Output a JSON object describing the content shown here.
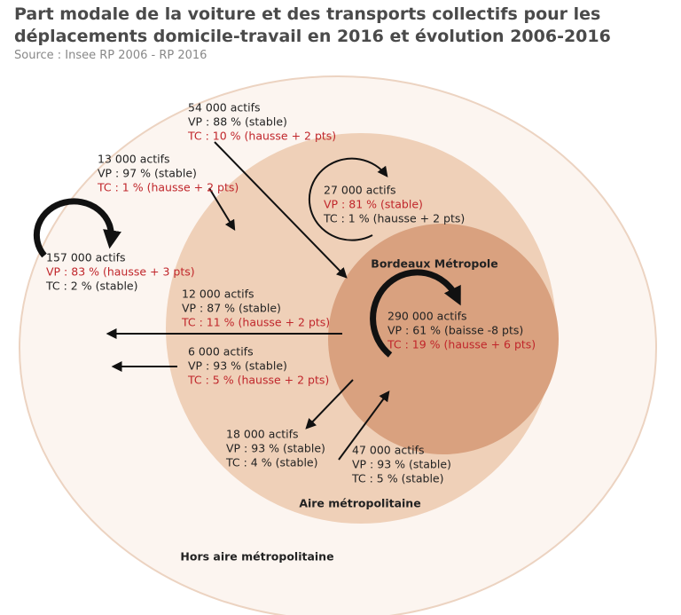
{
  "title": "Part modale de la voiture et des transports collectifs pour les déplacements domicile-travail en 2016 et évolution 2006-2016",
  "source": "Source : Insee RP 2006 - RP 2016",
  "zones": {
    "inner": "Bordeaux Métropole",
    "middle": "Aire métropolitaine",
    "outer": "Hors aire métropolitaine"
  },
  "flows": [
    {
      "count": "54 000 actifs",
      "vp": "VP : 88 % (stable)",
      "tc": "TC : 10 % (hausse + 2 pts)"
    },
    {
      "count": "13 000 actifs",
      "vp": "VP : 97 % (stable)",
      "tc": "TC : 1 % (hausse + 2 pts)"
    },
    {
      "count": "27 000 actifs",
      "vp": "VP : 81 % (stable)",
      "tc": "TC : 1 % (hausse + 2 pts)"
    },
    {
      "count": "157 000 actifs",
      "vp": "VP : 83 % (hausse + 3 pts)",
      "tc": "TC : 2 % (stable)"
    },
    {
      "count": "12 000 actifs",
      "vp": "VP : 87 % (stable)",
      "tc": "TC : 11 % (hausse + 2 pts)"
    },
    {
      "count": "290 000 actifs",
      "vp": "VP : 61 % (baisse -8 pts)",
      "tc": "TC : 19 % (hausse + 6 pts)"
    },
    {
      "count": "6 000 actifs",
      "vp": "VP : 93 % (stable)",
      "tc": "TC : 5 % (hausse + 2 pts)"
    },
    {
      "count": "18 000 actifs",
      "vp": "VP : 93 % (stable)",
      "tc": "TC : 4 % (stable)"
    },
    {
      "count": "47 000 actifs",
      "vp": "VP : 93 % (stable)",
      "tc": "TC : 5 % (stable)"
    }
  ]
}
